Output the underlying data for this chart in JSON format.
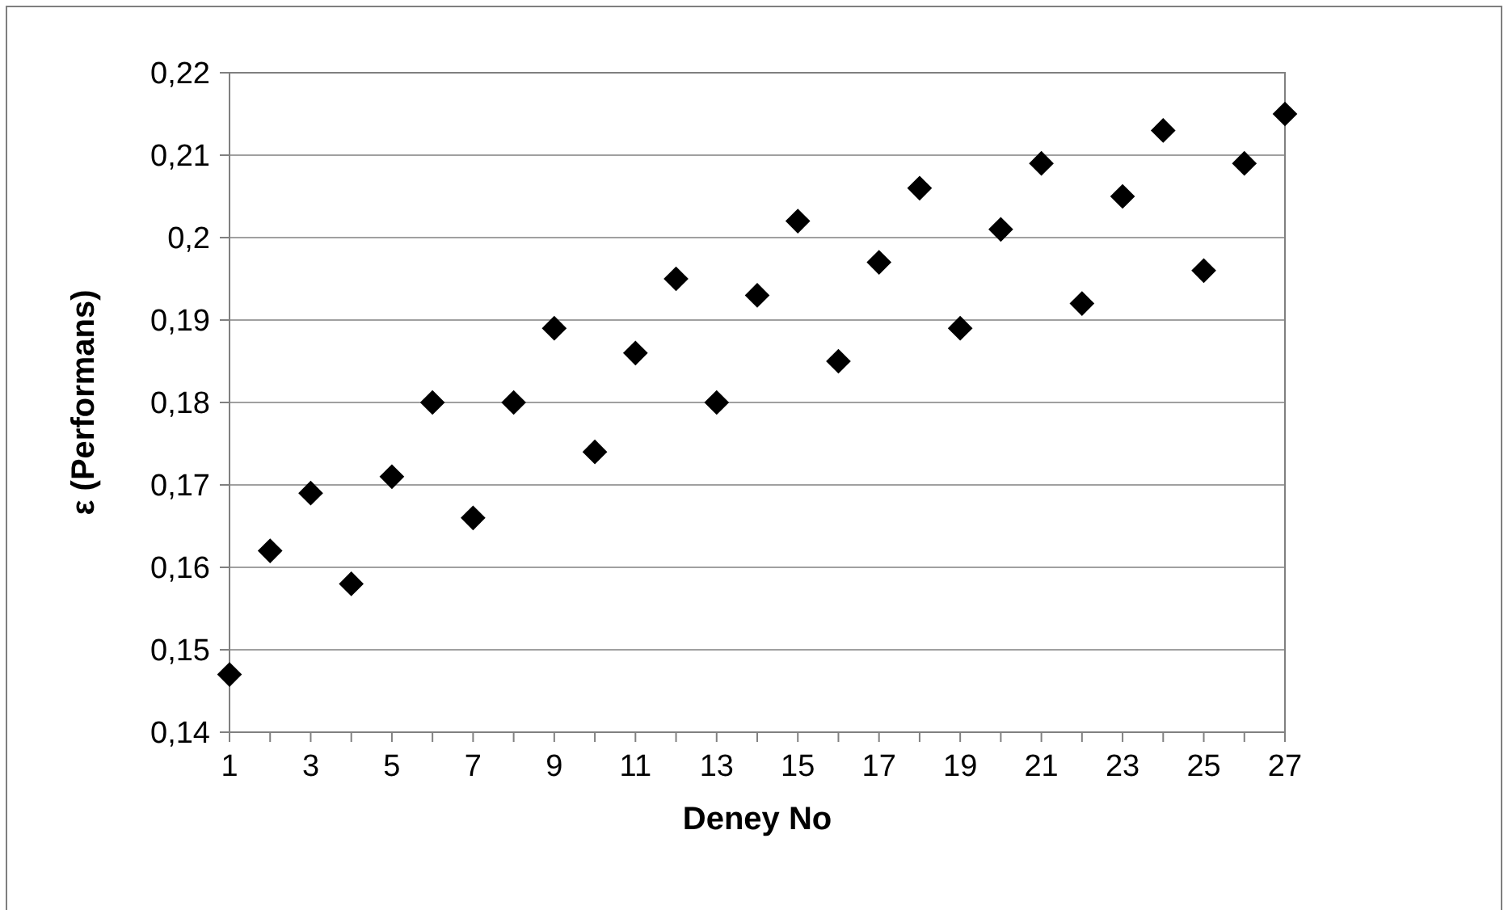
{
  "chart_data": {
    "type": "scatter",
    "xlabel": "Deney No",
    "ylabel": "ε (Performans)",
    "x": [
      1,
      2,
      3,
      4,
      5,
      6,
      7,
      8,
      9,
      10,
      11,
      12,
      13,
      14,
      15,
      16,
      17,
      18,
      19,
      20,
      21,
      22,
      23,
      24,
      25,
      26,
      27
    ],
    "series": [
      {
        "color": "#000000",
        "values": [
          0.147,
          0.162,
          0.169,
          0.158,
          0.171,
          0.18,
          0.166,
          0.18,
          0.189,
          0.174,
          0.186,
          0.195,
          0.18,
          0.193,
          0.202,
          0.185,
          0.197,
          0.206,
          0.189,
          0.201,
          0.209,
          0.192,
          0.205,
          0.213,
          0.196,
          0.209,
          0.215
        ]
      }
    ],
    "xlim": [
      1,
      27
    ],
    "xticks": [
      1,
      {
        "value": 2,
        "label": null
      },
      3,
      {
        "value": 4,
        "label": null
      },
      5,
      {
        "value": 6,
        "label": null
      },
      7,
      {
        "value": 8,
        "label": null
      },
      9,
      {
        "value": 10,
        "label": null
      },
      11,
      {
        "value": 12,
        "label": null
      },
      13,
      {
        "value": 14,
        "label": null
      },
      15,
      {
        "value": 16,
        "label": null
      },
      17,
      {
        "value": 18,
        "label": null
      },
      19,
      {
        "value": 20,
        "label": null
      },
      21,
      {
        "value": 22,
        "label": null
      },
      23,
      {
        "value": 24,
        "label": null
      },
      25,
      {
        "value": 26,
        "label": null
      },
      27
    ],
    "ylim": [
      0.14,
      0.22
    ],
    "yticks": [
      {
        "value": 0.14,
        "label": "0,14"
      },
      {
        "value": 0.15,
        "label": "0,15"
      },
      {
        "value": 0.16,
        "label": "0,16"
      },
      {
        "value": 0.17,
        "label": "0,17"
      },
      {
        "value": 0.18,
        "label": "0,18"
      },
      {
        "value": 0.19,
        "label": "0,19"
      },
      {
        "value": 0.2,
        "label": "0,2"
      },
      {
        "value": 0.21,
        "label": "0,21"
      },
      {
        "value": 0.22,
        "label": "0,22"
      }
    ],
    "grid": "y",
    "marker": "diamond"
  }
}
